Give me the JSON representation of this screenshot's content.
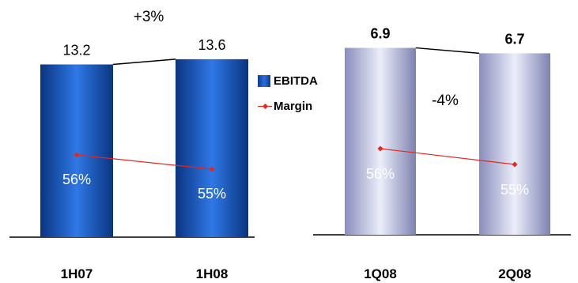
{
  "colors": {
    "ebitda_dark": "#0d3b86",
    "ebitda_light": "#2a6ee0",
    "quarter_dark": "#7a7fae",
    "quarter_light": "#e4e6fa",
    "margin_line": "#e8261c",
    "connector": "#000000"
  },
  "legend": {
    "ebitda_label": "EBITDA",
    "margin_label": "Margin"
  },
  "chart_data": [
    {
      "type": "bar",
      "categories": [
        "1H07",
        "1H08"
      ],
      "series": [
        {
          "name": "EBITDA",
          "values": [
            13.2,
            13.6
          ]
        },
        {
          "name": "Margin",
          "values": [
            56,
            55
          ],
          "value_labels": [
            "56%",
            "55%"
          ]
        }
      ],
      "value_labels": [
        "13.2",
        "13.6"
      ],
      "change_label": "+3%",
      "ylim": [
        0,
        14.5
      ]
    },
    {
      "type": "bar",
      "categories": [
        "1Q08",
        "2Q08"
      ],
      "series": [
        {
          "name": "EBITDA",
          "values": [
            6.9,
            6.7
          ]
        },
        {
          "name": "Margin",
          "values": [
            56,
            55
          ],
          "value_labels": [
            "56%",
            "55%"
          ]
        }
      ],
      "value_labels": [
        "6.9",
        "6.7"
      ],
      "change_label": "-4%",
      "ylim": [
        0,
        7.5
      ]
    }
  ]
}
